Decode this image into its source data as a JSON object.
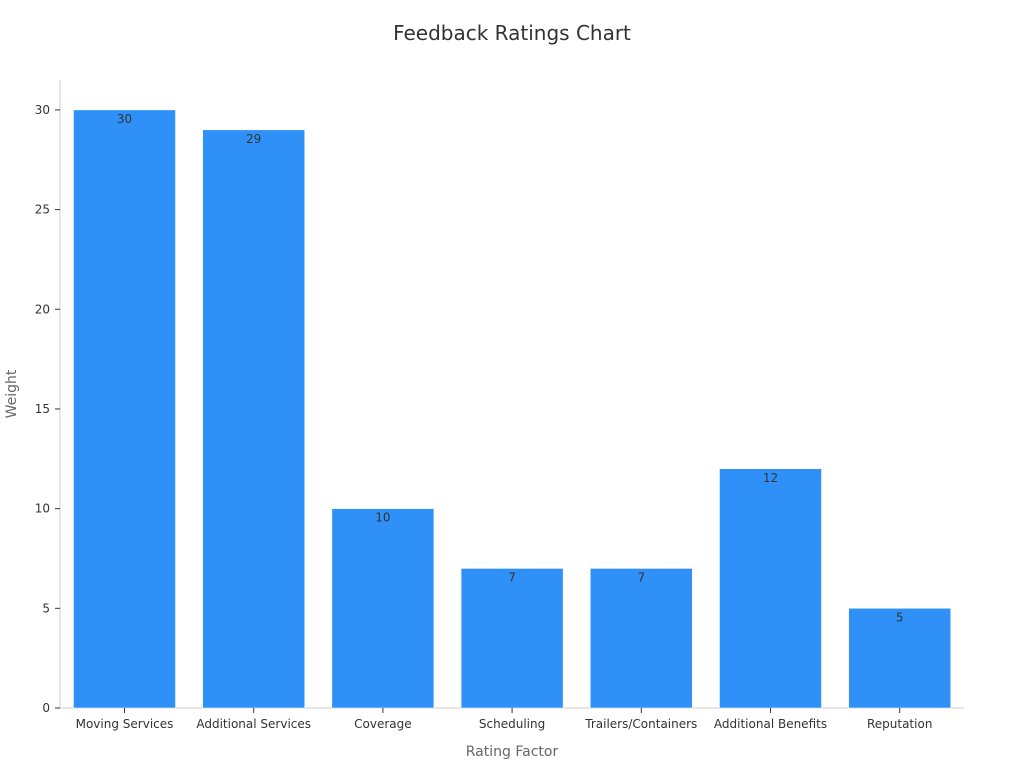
{
  "colors": {
    "bar": "#2f91f8",
    "background": "#ffffff"
  },
  "chart_data": {
    "type": "bar",
    "title": "Feedback Ratings Chart",
    "xlabel": "Rating Factor",
    "ylabel": "Weight",
    "categories": [
      "Moving Services",
      "Additional Services",
      "Coverage",
      "Scheduling",
      "Trailers/Containers",
      "Additional Benefits",
      "Reputation"
    ],
    "values": [
      30,
      29,
      10,
      7,
      7,
      12,
      5
    ],
    "data_labels": [
      "30",
      "29",
      "10",
      "7",
      "7",
      "12",
      "5"
    ],
    "ylim": [
      0,
      31.5
    ],
    "yticks": [
      0,
      5,
      10,
      15,
      20,
      25,
      30
    ],
    "grid": false,
    "legend": "none"
  }
}
